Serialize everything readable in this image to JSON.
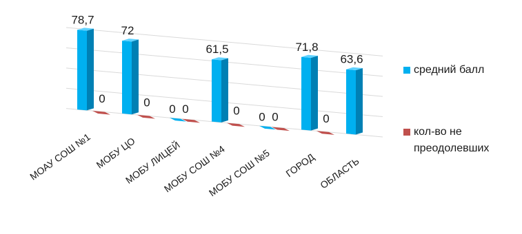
{
  "chart_data": {
    "type": "bar",
    "categories": [
      "МОАУ СОШ №1",
      "МОБУ ЦО",
      "МОБУ ЛИЦЕЙ",
      "МОБУ СОШ №4",
      "МОБУ СОШ №5",
      "ГОРОД",
      "ОБЛАСТЬ"
    ],
    "series": [
      {
        "name": "средний балл",
        "color": "#00b0f0",
        "values": [
          78.7,
          72,
          0,
          61.5,
          0,
          71.8,
          63.6
        ],
        "labels": [
          "78,7",
          "72",
          "0",
          "61,5",
          "0",
          "71,8",
          "63,6"
        ]
      },
      {
        "name": "кол-во не преодолевших",
        "color": "#c0504d",
        "values": [
          0,
          0,
          0,
          0,
          0,
          0,
          null
        ],
        "labels": [
          "0",
          "0",
          "0",
          "0",
          "0",
          "0",
          ""
        ]
      }
    ],
    "three_d": true,
    "grid": true,
    "legend_position": "right"
  }
}
